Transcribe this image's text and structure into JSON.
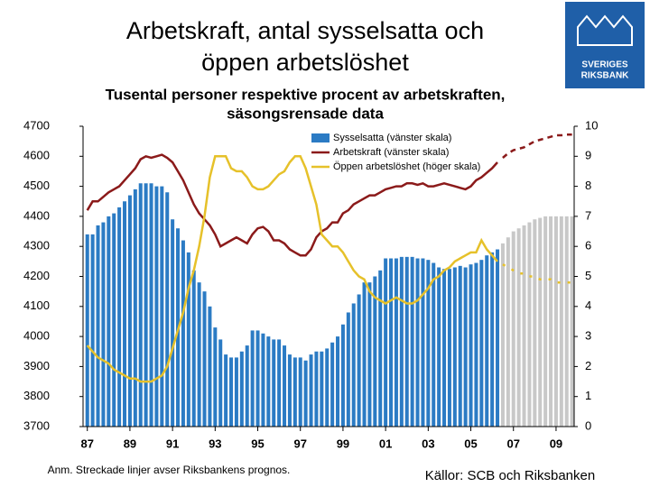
{
  "chart_data": {
    "type": "bar_line",
    "title": [
      "Arbetskraft, antal sysselsatta och",
      "öppen arbetslöshet"
    ],
    "subtitle": [
      "Tusental personer respektive procent av arbetskraften,",
      "säsongsrensade data"
    ],
    "note": "Anm. Streckade linjer avser Riksbankens prognos.",
    "source": "Källor: SCB och Riksbanken",
    "logo_text": [
      "SVERIGES",
      "RIKSBANK"
    ],
    "forecast_start": 2006.5,
    "forecast_color": "#c8c8c8",
    "xlim": [
      1986.8,
      2009.85
    ],
    "xticks": [
      {
        "value": 1987,
        "label": "87"
      },
      {
        "value": 1989,
        "label": "89"
      },
      {
        "value": 1991,
        "label": "91"
      },
      {
        "value": 1993,
        "label": "93"
      },
      {
        "value": 1995,
        "label": "95"
      },
      {
        "value": 1997,
        "label": "97"
      },
      {
        "value": 1999,
        "label": "99"
      },
      {
        "value": 2001,
        "label": "01"
      },
      {
        "value": 2003,
        "label": "03"
      },
      {
        "value": 2005,
        "label": "05"
      },
      {
        "value": 2007,
        "label": "07"
      },
      {
        "value": 2009,
        "label": "09"
      }
    ],
    "ylim": [
      3700,
      4700
    ],
    "yticks": [
      3700,
      3800,
      3900,
      4000,
      4100,
      4200,
      4300,
      4400,
      4500,
      4600,
      4700
    ],
    "y2lim": [
      0,
      10
    ],
    "y2ticks": [
      0,
      1,
      2,
      3,
      4,
      5,
      6,
      7,
      8,
      9,
      10
    ],
    "x": [
      1987,
      1987.25,
      1987.5,
      1987.75,
      1988,
      1988.25,
      1988.5,
      1988.75,
      1989,
      1989.25,
      1989.5,
      1989.75,
      1990,
      1990.25,
      1990.5,
      1990.75,
      1991,
      1991.25,
      1991.5,
      1991.75,
      1992,
      1992.25,
      1992.5,
      1992.75,
      1993,
      1993.25,
      1993.5,
      1993.75,
      1994,
      1994.25,
      1994.5,
      1994.75,
      1995,
      1995.25,
      1995.5,
      1995.75,
      1996,
      1996.25,
      1996.5,
      1996.75,
      1997,
      1997.25,
      1997.5,
      1997.75,
      1998,
      1998.25,
      1998.5,
      1998.75,
      1999,
      1999.25,
      1999.5,
      1999.75,
      2000,
      2000.25,
      2000.5,
      2000.75,
      2001,
      2001.25,
      2001.5,
      2001.75,
      2002,
      2002.25,
      2002.5,
      2002.75,
      2003,
      2003.25,
      2003.5,
      2003.75,
      2004,
      2004.25,
      2004.5,
      2004.75,
      2005,
      2005.25,
      2005.5,
      2005.75,
      2006,
      2006.25,
      2006.5,
      2006.75,
      2007,
      2007.25,
      2007.5,
      2007.75,
      2008,
      2008.25,
      2008.5,
      2008.75,
      2009,
      2009.25,
      2009.5,
      2009.75
    ],
    "series": [
      {
        "name": "Sysselsatta (vänster skala)",
        "type": "bar",
        "color": "#2b7bc4",
        "values": [
          4340,
          4340,
          4370,
          4380,
          4400,
          4410,
          4430,
          4450,
          4470,
          4490,
          4510,
          4510,
          4510,
          4500,
          4500,
          4480,
          4390,
          4360,
          4320,
          4280,
          4220,
          4180,
          4150,
          4100,
          4030,
          3990,
          3940,
          3930,
          3930,
          3950,
          3970,
          4020,
          4020,
          4010,
          4000,
          3990,
          3990,
          3970,
          3940,
          3930,
          3930,
          3920,
          3940,
          3950,
          3950,
          3960,
          3980,
          4000,
          4040,
          4080,
          4110,
          4140,
          4180,
          4180,
          4200,
          4220,
          4260,
          4260,
          4260,
          4265,
          4265,
          4265,
          4260,
          4260,
          4255,
          4245,
          4230,
          4225,
          4225,
          4230,
          4235,
          4230,
          4240,
          4245,
          4255,
          4270,
          4280,
          4290,
          4310,
          4330,
          4350,
          4360,
          4370,
          4380,
          4390,
          4395,
          4400,
          4400,
          4400,
          4400,
          4400,
          4400
        ]
      },
      {
        "name": "Arbetskraft (vänster skala)",
        "type": "line",
        "color": "#8b1a1a",
        "values": [
          4420,
          4450,
          4450,
          4465,
          4480,
          4490,
          4500,
          4520,
          4540,
          4560,
          4590,
          4600,
          4595,
          4600,
          4605,
          4595,
          4580,
          4550,
          4520,
          4480,
          4440,
          4410,
          4390,
          4370,
          4340,
          4300,
          4310,
          4320,
          4330,
          4320,
          4310,
          4340,
          4360,
          4365,
          4350,
          4320,
          4320,
          4310,
          4290,
          4280,
          4270,
          4270,
          4290,
          4330,
          4350,
          4360,
          4380,
          4380,
          4410,
          4420,
          4440,
          4450,
          4460,
          4470,
          4470,
          4480,
          4490,
          4495,
          4500,
          4500,
          4510,
          4510,
          4505,
          4510,
          4500,
          4500,
          4505,
          4510,
          4505,
          4500,
          4495,
          4490,
          4500,
          4520,
          4530,
          4545,
          4560,
          4580,
          4595,
          4610,
          4620,
          4625,
          4630,
          4640,
          4650,
          4655,
          4660,
          4665,
          4670,
          4670,
          4672,
          4672
        ]
      },
      {
        "name": "Öppen arbetslöshet (höger skala)",
        "type": "line",
        "axis": "y2",
        "color": "#e6c12a",
        "values": [
          2.7,
          2.5,
          2.3,
          2.2,
          2.1,
          1.9,
          1.8,
          1.7,
          1.6,
          1.6,
          1.5,
          1.5,
          1.5,
          1.6,
          1.7,
          2.0,
          2.6,
          3.2,
          3.8,
          4.6,
          5.2,
          6.0,
          7.0,
          8.3,
          9.0,
          9.0,
          9.0,
          8.6,
          8.5,
          8.5,
          8.3,
          8.0,
          7.9,
          7.9,
          8.0,
          8.2,
          8.4,
          8.5,
          8.8,
          9.0,
          9.0,
          8.6,
          8.0,
          7.4,
          6.4,
          6.2,
          6.0,
          6.0,
          5.8,
          5.5,
          5.2,
          5.0,
          4.9,
          4.5,
          4.3,
          4.2,
          4.1,
          4.2,
          4.3,
          4.2,
          4.1,
          4.1,
          4.2,
          4.4,
          4.6,
          4.9,
          5.0,
          5.2,
          5.3,
          5.5,
          5.6,
          5.7,
          5.8,
          5.8,
          6.2,
          5.9,
          5.7,
          5.5,
          5.4,
          5.3,
          5.2,
          5.1,
          5.1,
          5.0,
          5.0,
          4.9,
          4.9,
          4.9,
          4.8,
          4.8,
          4.8,
          4.8
        ]
      }
    ]
  }
}
